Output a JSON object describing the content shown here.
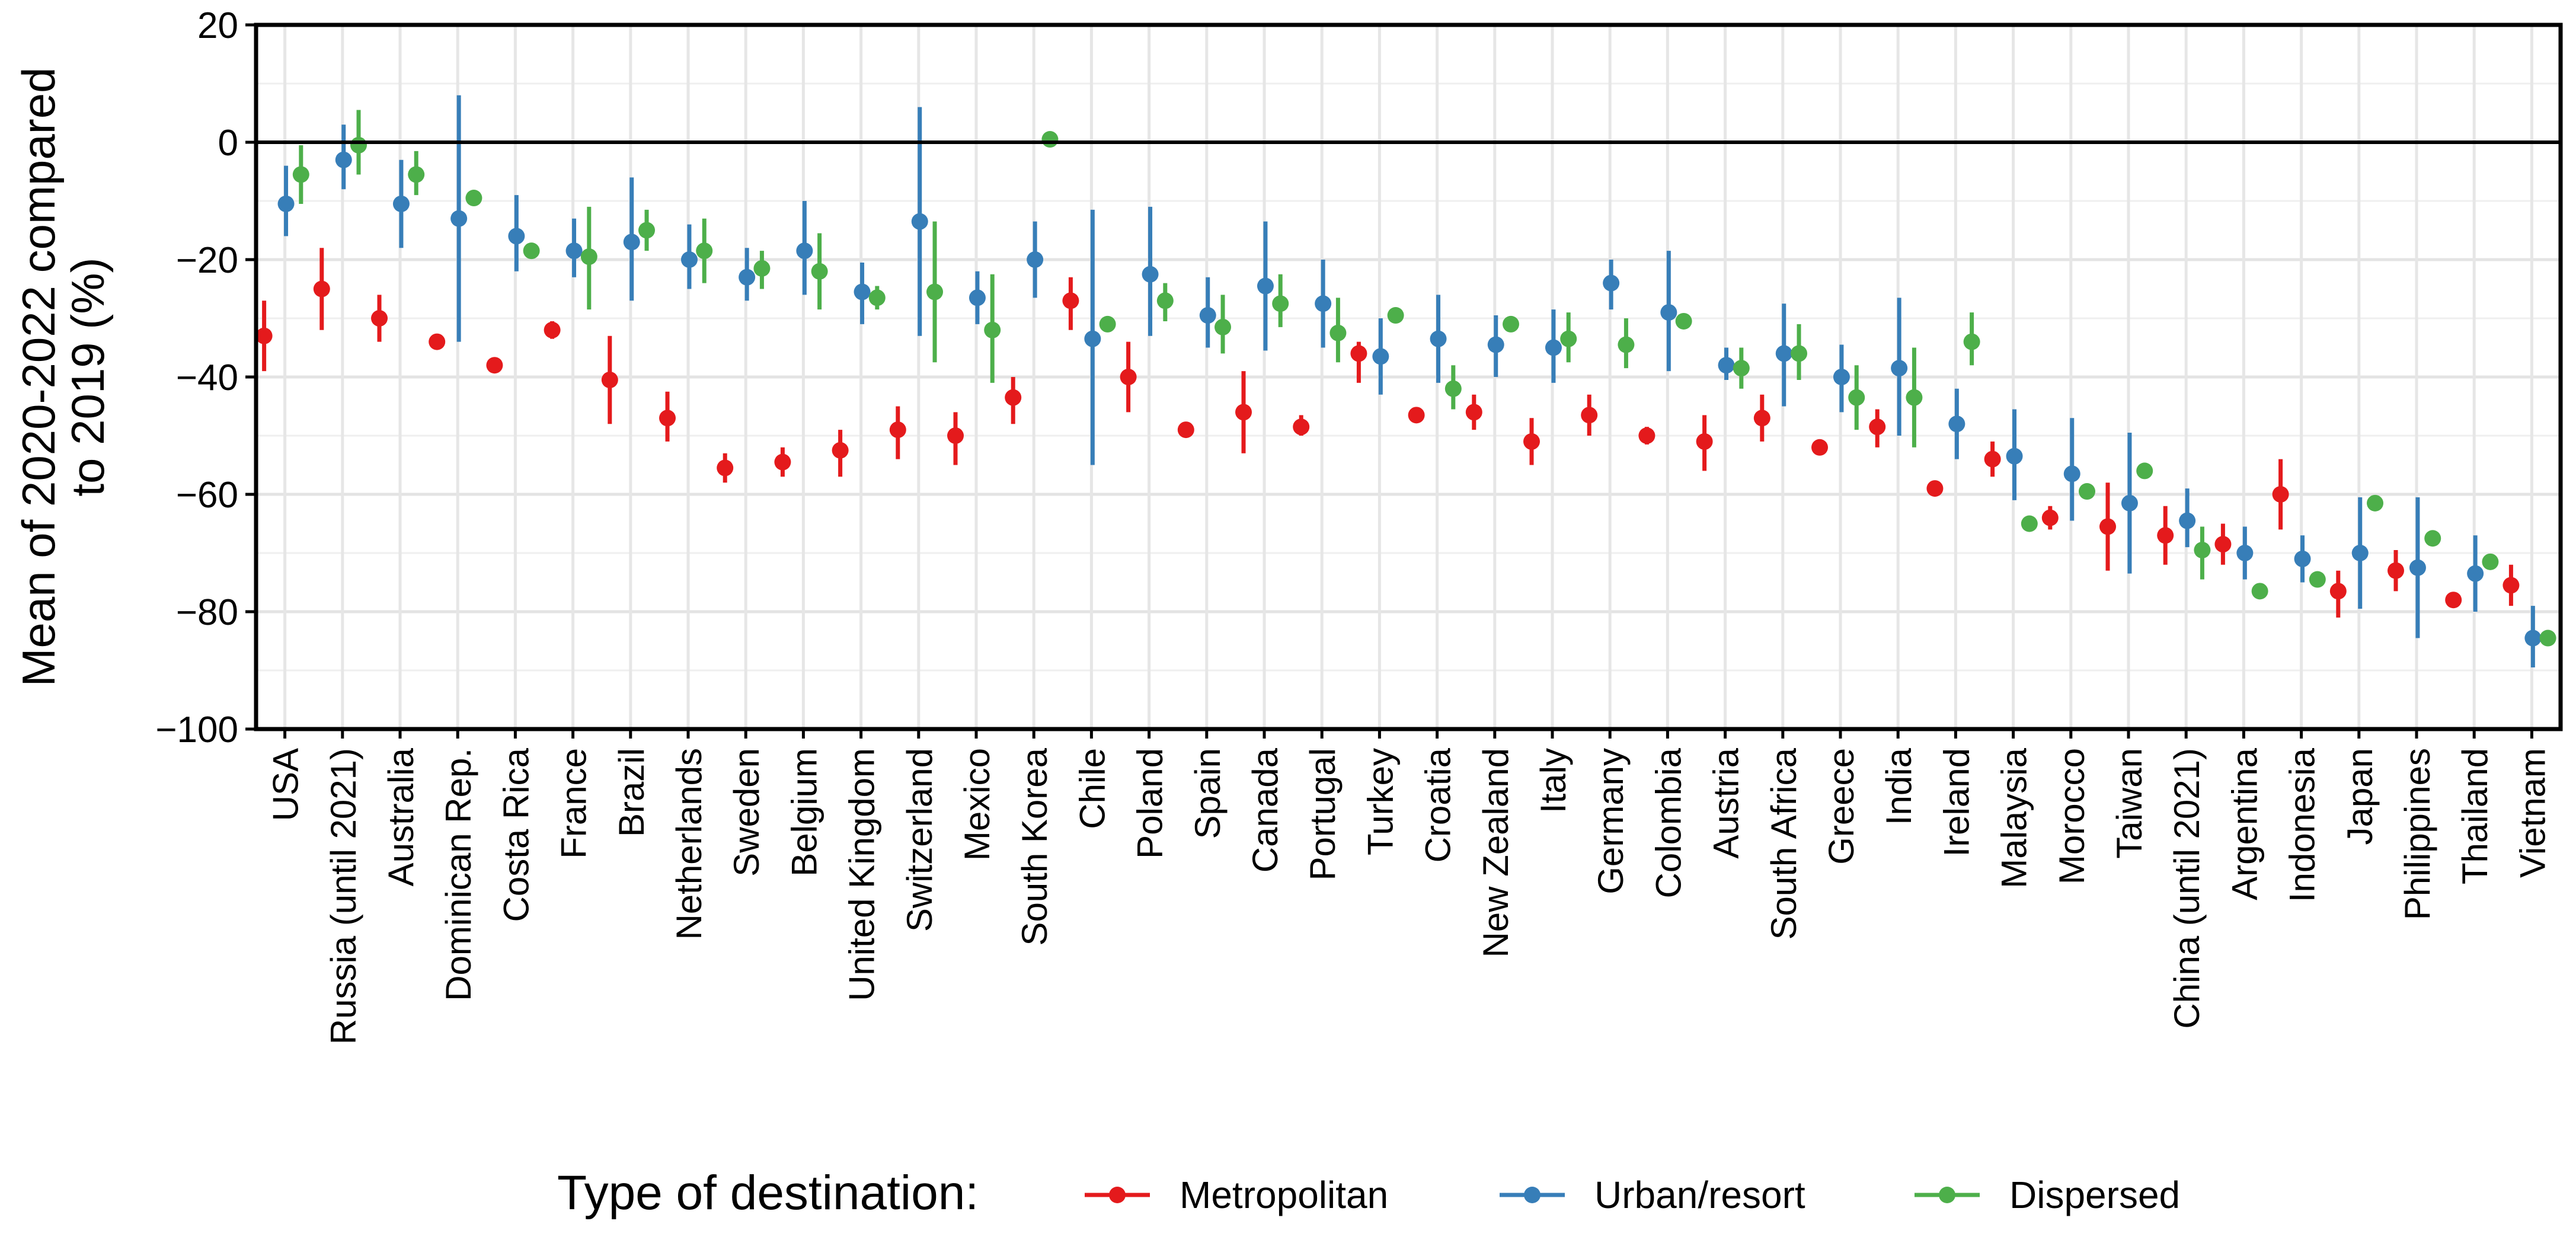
{
  "chart_data": {
    "type": "scatter",
    "subtype": "point-range",
    "ylabel_lines": [
      "Mean of 2020-2022 compared",
      "to 2019 (%)"
    ],
    "xlabel": "",
    "ylim": [
      -100,
      20
    ],
    "yticks": [
      20,
      0,
      -20,
      -40,
      -60,
      -80,
      -100
    ],
    "yticklabels": [
      "20",
      "0",
      "−20",
      "−40",
      "−60",
      "−80",
      "−100"
    ],
    "grid": true,
    "zero_line": 0,
    "legend_title": "Type of destination:",
    "legend_position": "bottom",
    "categories": [
      "USA",
      "Russia (until 2021)",
      "Australia",
      "Dominican Rep.",
      "Costa Rica",
      "France",
      "Brazil",
      "Netherlands",
      "Sweden",
      "Belgium",
      "United Kingdom",
      "Switzerland",
      "Mexico",
      "South Korea",
      "Chile",
      "Poland",
      "Spain",
      "Canada",
      "Portugal",
      "Turkey",
      "Croatia",
      "New Zealand",
      "Italy",
      "Germany",
      "Colombia",
      "Austria",
      "South Africa",
      "Greece",
      "India",
      "Ireland",
      "Malaysia",
      "Morocco",
      "Taiwan",
      "China (until 2021)",
      "Argentina",
      "Indonesia",
      "Japan",
      "Philippines",
      "Thailand",
      "Vietnam"
    ],
    "series": [
      {
        "name": "Metropolitan",
        "color": "#e41a1c",
        "values": [
          -33,
          -25,
          -30,
          -34,
          -38,
          -32,
          -40.5,
          -47,
          -55.5,
          -54.5,
          -52.5,
          -49,
          -50,
          -43.5,
          -27,
          -40,
          -49,
          -46,
          -48.5,
          -36,
          -46.5,
          -46,
          -51,
          -46.5,
          -50,
          -51,
          -47,
          -52,
          -48.5,
          -59,
          -54,
          -64,
          -65.5,
          -67,
          -68.5,
          -60,
          -76.5,
          -73,
          -78,
          -75.5
        ],
        "lower": [
          -39,
          -32,
          -34,
          -34,
          -38,
          -33.5,
          -48,
          -51,
          -58,
          -57,
          -57,
          -54,
          -55,
          -48,
          -32,
          -46,
          -49,
          -53,
          -50,
          -41,
          -46.5,
          -49,
          -55,
          -50,
          -51.5,
          -56,
          -51,
          -52,
          -52,
          -59,
          -57,
          -66,
          -73,
          -72,
          -72,
          -66,
          -81,
          -76.5,
          -78,
          -79
        ],
        "upper": [
          -27,
          -18,
          -26,
          -34,
          -38,
          -30.5,
          -33,
          -42.5,
          -53,
          -52,
          -49,
          -45,
          -46,
          -40,
          -23,
          -34,
          -49,
          -39,
          -46.5,
          -34,
          -46.5,
          -43,
          -47,
          -43,
          -48.5,
          -46.5,
          -43,
          -52,
          -45.5,
          -59,
          -51,
          -62,
          -58,
          -62,
          -65,
          -54,
          -73,
          -69.5,
          -78,
          -72
        ]
      },
      {
        "name": "Urban/resort",
        "color": "#377eb8",
        "values": [
          -10.5,
          -3,
          -10.5,
          -13,
          -16,
          -18.5,
          -17,
          -20,
          -23,
          -18.5,
          -25.5,
          -13.5,
          -26.5,
          -20,
          -33.5,
          -22.5,
          -29.5,
          -24.5,
          -27.5,
          -36.5,
          -33.5,
          -34.5,
          -35,
          -24,
          -29,
          -38,
          -36,
          -40,
          -38.5,
          -48,
          -53.5,
          -56.5,
          -61.5,
          -64.5,
          -70,
          -71,
          -70,
          -72.5,
          -73.5,
          -84.5
        ],
        "lower": [
          -16,
          -8,
          -18,
          -34,
          -22,
          -23,
          -27,
          -25,
          -27,
          -26,
          -31,
          -33,
          -31,
          -26.5,
          -55,
          -33,
          -35,
          -35.5,
          -35,
          -43,
          -41,
          -40,
          -41,
          -28.5,
          -39,
          -40.5,
          -45,
          -46,
          -50,
          -54,
          -61,
          -64.5,
          -73.5,
          -69,
          -74.5,
          -75,
          -79.5,
          -84.5,
          -80,
          -89.5
        ],
        "upper": [
          -4,
          3,
          -3,
          8,
          -9,
          -13,
          -6,
          -14,
          -18,
          -10,
          -20.5,
          6,
          -22,
          -13.5,
          -11.5,
          -11,
          -23,
          -13.5,
          -20,
          -30,
          -26,
          -29.5,
          -28.5,
          -20,
          -18.5,
          -35,
          -27.5,
          -34.5,
          -26.5,
          -42,
          -45.5,
          -47,
          -49.5,
          -59,
          -65.5,
          -67,
          -60.5,
          -60.5,
          -67,
          -79
        ]
      },
      {
        "name": "Dispersed",
        "color": "#4daf4a",
        "values": [
          -5.5,
          -0.5,
          -5.5,
          -9.5,
          -18.5,
          -19.5,
          -15,
          -18.5,
          -21.5,
          -22,
          -26.5,
          -25.5,
          -32,
          0.5,
          -31,
          -27,
          -31.5,
          -27.5,
          -32.5,
          -29.5,
          -42,
          -31,
          -33.5,
          -34.5,
          -30.5,
          -38.5,
          -36,
          -43.5,
          -43.5,
          -34,
          -65,
          -59.5,
          -56,
          -69.5,
          -76.5,
          -74.5,
          -61.5,
          -67.5,
          -71.5,
          -84.5
        ],
        "lower": [
          -10.5,
          -5.5,
          -9,
          -9.5,
          -18.5,
          -28.5,
          -18.5,
          -24,
          -25,
          -28.5,
          -28.5,
          -37.5,
          -41,
          0.5,
          -31,
          -30.5,
          -36,
          -31.5,
          -37.5,
          -29.5,
          -45.5,
          -31,
          -37.5,
          -38.5,
          -30.5,
          -42,
          -40.5,
          -49,
          -52,
          -38,
          -65,
          -59.5,
          -56,
          -74.5,
          -76.5,
          -74.5,
          -61.5,
          -67.5,
          -71.5,
          -84.5
        ],
        "upper": [
          -0.5,
          5.5,
          -1.5,
          -9.5,
          -18.5,
          -11,
          -11.5,
          -13,
          -18.5,
          -15.5,
          -24.5,
          -13.5,
          -22.5,
          0.5,
          -31,
          -24,
          -26,
          -22.5,
          -26.5,
          -29.5,
          -38,
          -31,
          -29,
          -30,
          -30.5,
          -35,
          -31,
          -38,
          -35,
          -29,
          -65,
          -59.5,
          -56,
          -65.5,
          -76.5,
          -74.5,
          -61.5,
          -67.5,
          -71.5,
          -84.5
        ]
      }
    ]
  }
}
